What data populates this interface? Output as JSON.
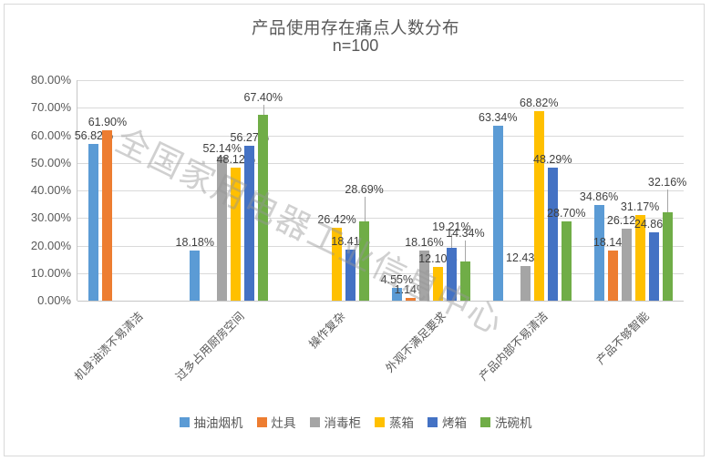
{
  "watermark": "全国家用电器工业信息中心",
  "chart_data": {
    "type": "bar",
    "title": "产品使用存在痛点人数分布",
    "subtitle": "n=100",
    "categories": [
      "机身油渍不易清洁",
      "过多占用厨房空间",
      "操作复杂",
      "外观不满足要求",
      "产品内部不易清洁",
      "产品不够智能"
    ],
    "series": [
      {
        "name": "抽油烟机",
        "color": "#5B9BD5",
        "values": [
          56.82,
          18.18,
          null,
          4.55,
          63.34,
          34.86
        ]
      },
      {
        "name": "灶具",
        "color": "#ED7D31",
        "values": [
          61.9,
          null,
          null,
          1.14,
          null,
          18.14
        ]
      },
      {
        "name": "消毒柜",
        "color": "#A5A5A5",
        "values": [
          null,
          52.14,
          null,
          18.16,
          12.43,
          26.12
        ]
      },
      {
        "name": "蒸箱",
        "color": "#FFC000",
        "values": [
          null,
          48.12,
          26.42,
          12.1,
          68.82,
          31.17
        ]
      },
      {
        "name": "烤箱",
        "color": "#4472C4",
        "values": [
          null,
          56.27,
          18.41,
          19.21,
          48.29,
          24.86
        ]
      },
      {
        "name": "洗碗机",
        "color": "#70AD47",
        "values": [
          null,
          67.4,
          28.69,
          14.34,
          28.7,
          32.16
        ]
      }
    ],
    "value_label_format": "0.00%",
    "ylabel": "",
    "xlabel": "",
    "ylim": [
      0,
      80
    ],
    "ytick_labels": [
      "0.00%",
      "10.00%",
      "20.00%",
      "30.00%",
      "40.00%",
      "50.00%",
      "60.00%",
      "70.00%",
      "80.00%"
    ],
    "grid": true,
    "legend_position": "bottom"
  }
}
